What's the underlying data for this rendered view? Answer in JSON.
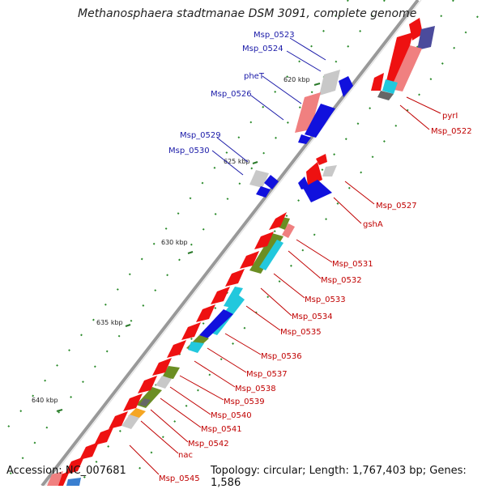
{
  "title": "Methanosphaera stadtmanae DSM 3091, complete genome",
  "footer": {
    "accession": "Accession: NC_007681",
    "topology": "Topology: circular; Length: 1,767,403 bp; Genes: 1,586"
  },
  "ticks": [
    "620 kbp",
    "625 kbp",
    "630 kbp",
    "635 kbp",
    "640 kbp"
  ],
  "left_labels": [
    "Msp_0523",
    "Msp_0524",
    "pheT",
    "Msp_0526",
    "Msp_0529",
    "Msp_0530"
  ],
  "right_labels": [
    "pyrI",
    "Msp_0522",
    "Msp_0527",
    "gshA",
    "Msp_0531",
    "Msp_0532",
    "Msp_0533",
    "Msp_0534",
    "Msp_0535",
    "Msp_0536",
    "Msp_0537",
    "Msp_0538",
    "Msp_0539",
    "Msp_0540",
    "Msp_0541",
    "Msp_0542",
    "nac",
    "Msp_0545"
  ],
  "colors": {
    "cds_forward": "#ee1111",
    "cds_reverse": "#1111dd",
    "backbone": "#999999",
    "green_dots": "#228822",
    "olive": "#6b8e23",
    "cyan": "#22c8dd",
    "pink": "#f08080",
    "gray": "#c8c8c8",
    "orange": "#f5a623",
    "navy": "#4b4b9c"
  }
}
